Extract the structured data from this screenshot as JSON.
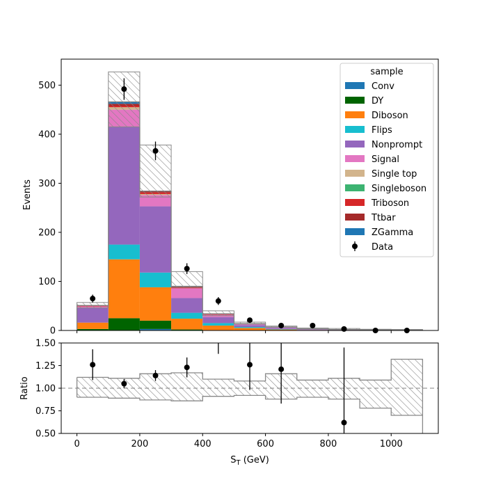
{
  "chart_data": {
    "type": "bar",
    "stacked": true,
    "xlabel": "S_T (GeV)",
    "ylabel": "Events",
    "ratio_ylabel": "Ratio",
    "legend_title": "sample",
    "legend_position": "top-right",
    "bin_edges": [
      0,
      100,
      200,
      300,
      400,
      500,
      600,
      700,
      800,
      900,
      1000,
      1100
    ],
    "xlim": [
      -50,
      1150
    ],
    "ylim": [
      0,
      553
    ],
    "ratio_ylim": [
      0.5,
      1.5
    ],
    "xticks": [
      "0",
      "200",
      "400",
      "600",
      "800",
      "1000"
    ],
    "yticks": [
      "0",
      "100",
      "200",
      "300",
      "400",
      "500"
    ],
    "ratio_yticks": [
      "0.50",
      "0.75",
      "1.00",
      "1.25",
      "1.50"
    ],
    "series": [
      {
        "name": "Conv",
        "color": "#1f77b4",
        "values": [
          0,
          0,
          3,
          0,
          0,
          0,
          0,
          0,
          0,
          0,
          0
        ]
      },
      {
        "name": "DY",
        "color": "#006400",
        "values": [
          3,
          25,
          17,
          2,
          0,
          0,
          0,
          0,
          0,
          0,
          0
        ]
      },
      {
        "name": "Diboson",
        "color": "#ff7f0e",
        "values": [
          13,
          120,
          68,
          22,
          10,
          5,
          2,
          1,
          0.5,
          0.3,
          0.2
        ]
      },
      {
        "name": "Flips",
        "color": "#17becf",
        "values": [
          0,
          30,
          30,
          12,
          5,
          2,
          1,
          0,
          0,
          0,
          0
        ]
      },
      {
        "name": "Nonprompt",
        "color": "#9467bd",
        "values": [
          30,
          240,
          135,
          30,
          12,
          4,
          2,
          1,
          0.5,
          0.3,
          0.2
        ]
      },
      {
        "name": "Signal",
        "color": "#e377c2",
        "values": [
          3,
          35,
          23,
          20,
          5,
          2,
          2,
          1,
          1,
          0.5,
          0.3
        ]
      },
      {
        "name": "Single top",
        "color": "#d2b48c",
        "values": [
          0,
          5,
          2,
          0,
          0,
          0,
          0,
          0,
          0,
          0,
          0
        ]
      },
      {
        "name": "Singleboson",
        "color": "#3cb371",
        "values": [
          0,
          0,
          0,
          0,
          0,
          0,
          0,
          0,
          0,
          0,
          0
        ]
      },
      {
        "name": "Triboson",
        "color": "#d62728",
        "values": [
          1,
          3,
          3,
          2,
          1,
          0.5,
          0,
          0,
          0,
          0,
          0
        ]
      },
      {
        "name": "Ttbar",
        "color": "#a52a2a",
        "values": [
          1,
          4,
          3,
          2,
          1,
          0.5,
          0,
          0,
          0,
          0,
          0
        ]
      },
      {
        "name": "ZGamma",
        "color": "#1f77b4",
        "values": [
          0,
          4,
          0,
          0,
          0,
          0,
          0,
          0,
          0,
          0,
          0
        ]
      }
    ],
    "uncertainty": {
      "up": [
        57,
        527,
        378,
        120,
        40,
        17,
        9,
        5,
        4,
        2.5,
        2
      ],
      "down": [
        46,
        415,
        272,
        88,
        30,
        13,
        6.5,
        3.4,
        1.8,
        0.9,
        0.5
      ]
    },
    "ratio_band": {
      "up": [
        1.12,
        1.11,
        1.16,
        1.17,
        1.1,
        1.08,
        1.16,
        1.09,
        1.11,
        1.09,
        1.32
      ],
      "down": [
        0.9,
        0.89,
        0.87,
        0.86,
        0.91,
        0.92,
        0.88,
        0.9,
        0.88,
        0.78,
        0.7
      ]
    },
    "data": {
      "name": "Data",
      "x": [
        50,
        150,
        250,
        350,
        450,
        550,
        650,
        750,
        850,
        950,
        1050
      ],
      "y": [
        65,
        492,
        366,
        126,
        60,
        21,
        10,
        10,
        3,
        0,
        0
      ],
      "yerr": [
        8,
        22,
        19,
        11,
        8,
        4.6,
        3.2,
        3.2,
        1.7,
        1,
        1
      ]
    },
    "ratio": {
      "x": [
        50,
        150,
        250,
        350,
        450,
        550,
        650,
        850
      ],
      "y": [
        1.26,
        1.05,
        1.14,
        1.23,
        1.5,
        1.26,
        1.21,
        0.62
      ],
      "err": [
        0.17,
        0.05,
        0.06,
        0.11,
        0.12,
        0.28,
        0.38,
        0.83
      ]
    },
    "ratio_reference": 1.0
  }
}
